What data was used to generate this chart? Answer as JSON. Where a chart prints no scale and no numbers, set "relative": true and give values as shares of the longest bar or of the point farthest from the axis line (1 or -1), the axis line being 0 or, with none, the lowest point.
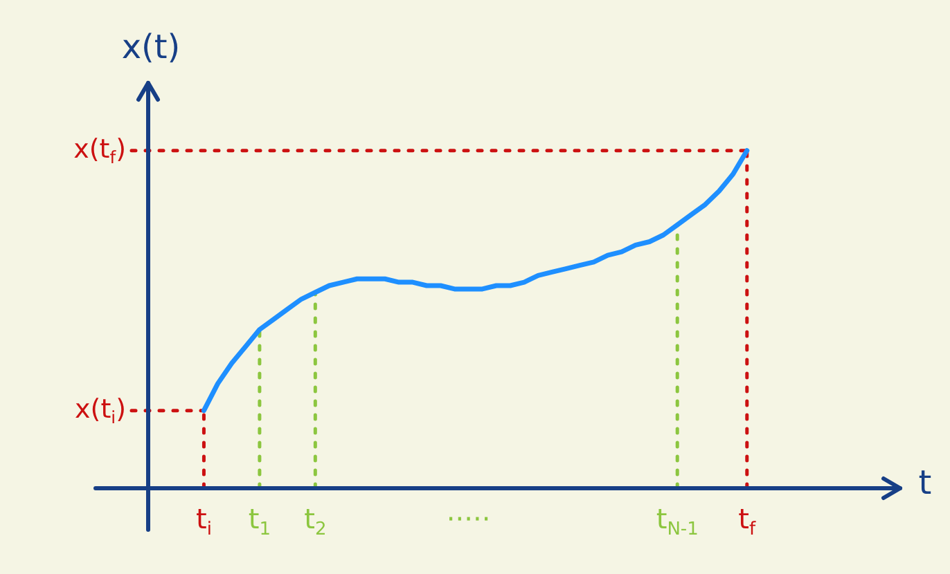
{
  "chart_data": {
    "type": "line",
    "relative": true,
    "xlabel": "t",
    "ylabel": "x(t)",
    "categories": [
      "t$_{i}$",
      null,
      null,
      null,
      "t$_{1}$",
      null,
      null,
      null,
      "t$_{2}$",
      null,
      null,
      null,
      null,
      null,
      null,
      null,
      null,
      null,
      null,
      "·····",
      null,
      null,
      null,
      null,
      null,
      null,
      null,
      null,
      null,
      null,
      null,
      null,
      null,
      null,
      "t$_{N-1}$",
      null,
      null,
      null,
      null,
      "t$_{f}$"
    ],
    "series": [
      {
        "color": "#1e8fff",
        "values": [
          0.23,
          0.31,
          0.37,
          0.42,
          0.47,
          0.5,
          0.53,
          0.56,
          0.58,
          0.6,
          0.61,
          0.62,
          0.62,
          0.62,
          0.61,
          0.61,
          0.6,
          0.6,
          0.59,
          0.59,
          0.59,
          0.6,
          0.6,
          0.61,
          0.63,
          0.64,
          0.65,
          0.66,
          0.67,
          0.69,
          0.7,
          0.72,
          0.73,
          0.75,
          0.78,
          0.81,
          0.84,
          0.88,
          0.93,
          1.0
        ]
      }
    ],
    "ref_lines": [
      {
        "axis": "x",
        "value": "t$_{i}$",
        "color": "#cc1111",
        "line_style": "dotted"
      },
      {
        "axis": "x",
        "value": "t$_{1}$",
        "color": "#8cc63f",
        "line_style": "dotted"
      },
      {
        "axis": "x",
        "value": "t$_{2}$",
        "color": "#8cc63f",
        "line_style": "dotted"
      },
      {
        "axis": "x",
        "value": "t$_{N-1}$",
        "color": "#8cc63f",
        "line_style": "dotted"
      },
      {
        "axis": "x",
        "value": "t$_{f}$",
        "color": "#cc1111",
        "line_style": "dotted"
      },
      {
        "axis": "y",
        "value": 0.23,
        "label": "x(t$_{i}$)",
        "color": "#cc1111",
        "line_style": "dotted"
      },
      {
        "axis": "y",
        "value": 1.0,
        "label": "x(t$_{f}$)",
        "color": "#cc1111",
        "line_style": "dotted"
      }
    ],
    "line_style": "solid"
  }
}
